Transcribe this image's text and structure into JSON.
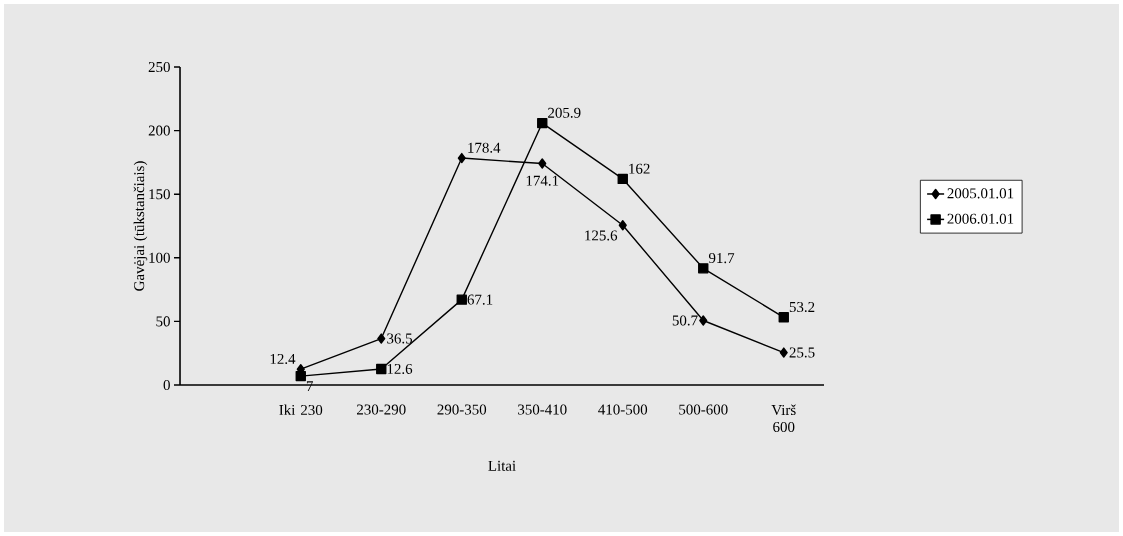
{
  "chart_data": {
    "type": "line",
    "xlabel": "Litai",
    "ylabel": "Gavėjai (tūkstančiais)",
    "categories": [
      null,
      "Iki 230",
      "230-290",
      "290-350",
      "350-410",
      "410-500",
      "500-600",
      "Virš 600"
    ],
    "series": [
      {
        "name": "2005.01.01",
        "color": "#000000",
        "marker": "diamond",
        "values": [
          null,
          12.4,
          36.5,
          178.4,
          174.1,
          125.6,
          50.7,
          25.5
        ]
      },
      {
        "name": "2006.01.01",
        "color": "#000000",
        "marker": "square",
        "values": [
          null,
          7,
          12.6,
          67.1,
          205.9,
          162,
          91.7,
          53.2
        ]
      }
    ],
    "ylim": [
      0,
      250
    ],
    "yticks": [
      0,
      50,
      100,
      150,
      200,
      250
    ],
    "data_labels": true,
    "legend": "right",
    "grid": false,
    "line_style": "solid"
  }
}
